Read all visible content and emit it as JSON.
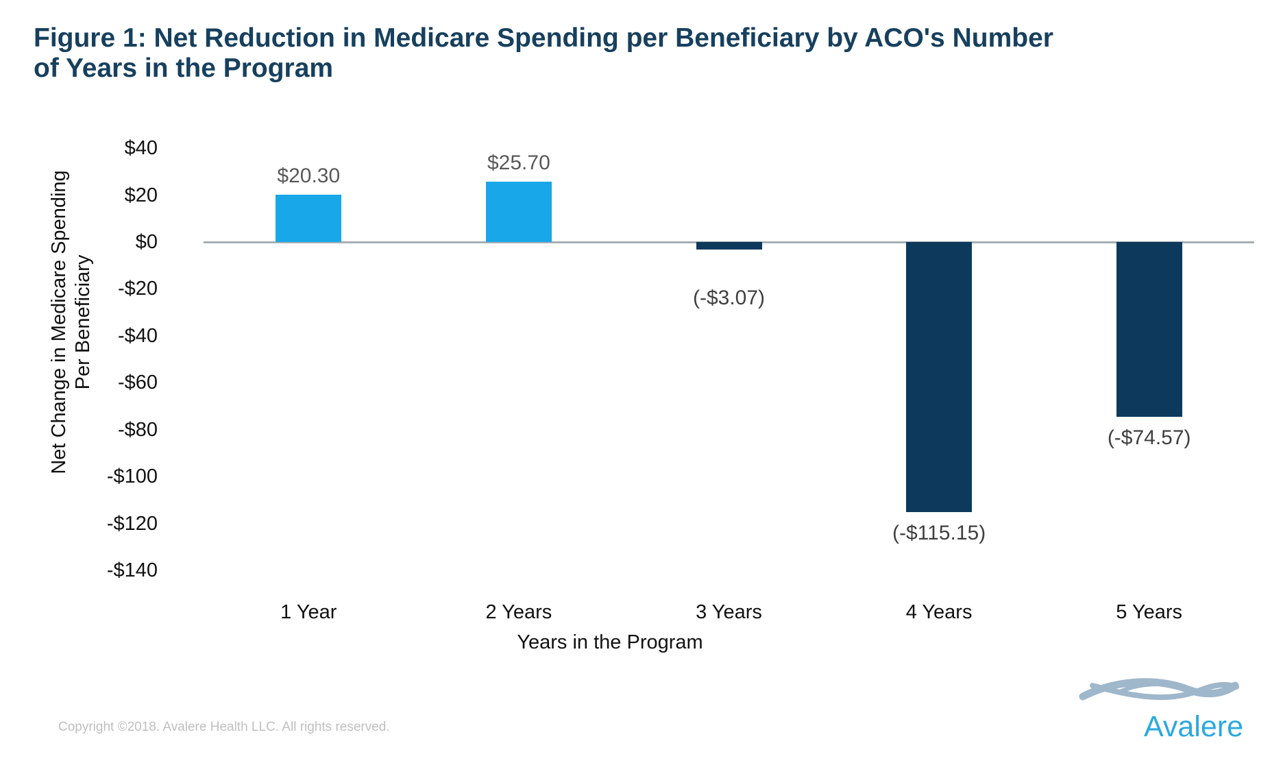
{
  "page": {
    "title_lines": [
      "Figure 1: Net Reduction in Medicare Spending per Beneficiary by ACO's Number",
      "of Years in the Program"
    ],
    "copyright": "Copyright ©2018. Avalere Health LLC. All rights reserved.",
    "logo_text": "Avalere"
  },
  "colors": {
    "title": "#17405e",
    "positive_bar": "#18a7e8",
    "negative_bar": "#0d3a5c",
    "axis_line": "#a6aeb3",
    "positive_label": "#595959",
    "negative_label": "#3f3f3f",
    "tick_label": "#111111",
    "copyright": "#bfbfbf",
    "logo_text": "#29a9e1",
    "logo_swoosh": "#9fb7cb"
  },
  "chart_data": {
    "type": "bar",
    "title": "Figure 1: Net Reduction in Medicare Spending per Beneficiary by ACO's Number of Years in the Program",
    "categories": [
      "1 Year",
      "2 Years",
      "3 Years",
      "4 Years",
      "5 Years"
    ],
    "values": [
      20.3,
      25.7,
      -3.07,
      -115.15,
      -74.57
    ],
    "data_labels": [
      "$20.30",
      "$25.70",
      "(-$3.07)",
      "(-$115.15)",
      "(-$74.57)"
    ],
    "label_extra_gap": [
      0,
      0,
      40,
      0,
      0
    ],
    "xlabel": "Years in the Program",
    "ylabel_lines": [
      "Net Change in Medicare Spending",
      "Per Beneficiary"
    ],
    "ylim": [
      -140,
      40
    ],
    "ytick_step": 20,
    "ytick_labels": [
      "$40",
      "$20",
      "$0",
      "-$20",
      "-$40",
      "-$60",
      "-$80",
      "-$100",
      "-$120",
      "-$140"
    ],
    "grid": false,
    "legend": false
  }
}
